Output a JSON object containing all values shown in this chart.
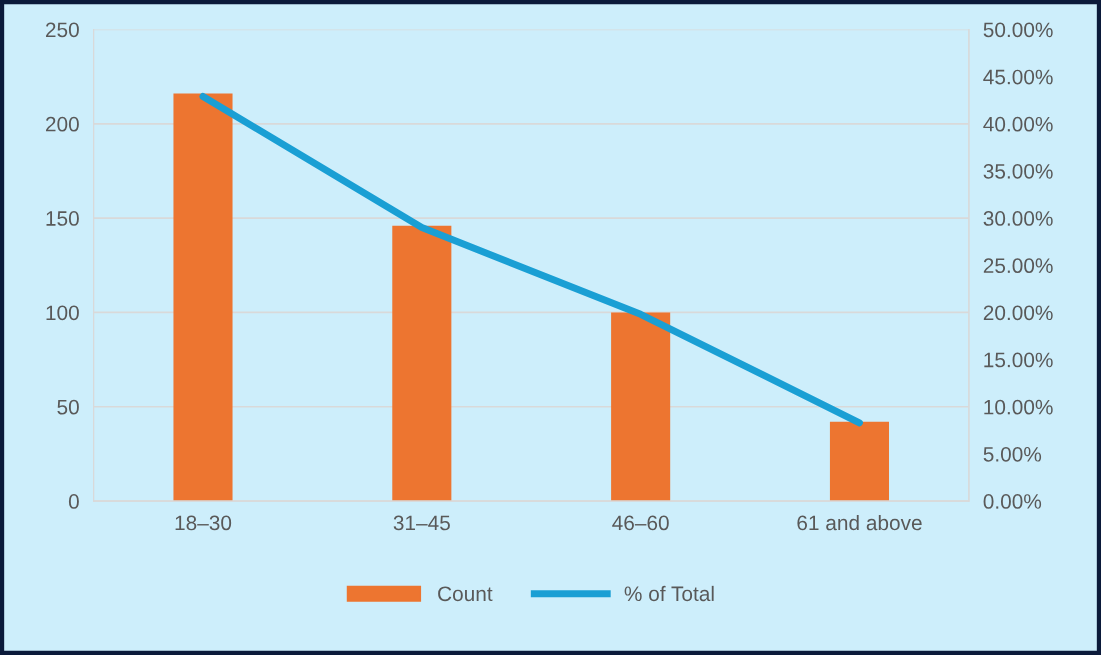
{
  "chart_data": {
    "type": "bar",
    "categories": [
      "18–30",
      "31–45",
      "46–60",
      "61 and above"
    ],
    "series": [
      {
        "name": "Count",
        "color": "#ed7530",
        "values": [
          216,
          146,
          100,
          42
        ]
      },
      {
        "name": "% of Total",
        "type": "line",
        "axis": "y2",
        "color": "#1a9fd4",
        "values": [
          42.9,
          29.0,
          19.8,
          8.3
        ]
      }
    ],
    "ylim": [
      0,
      250
    ],
    "yticks": [
      0,
      50,
      100,
      150,
      200,
      250
    ],
    "y2lim": [
      0,
      50
    ],
    "y2ticks": [
      {
        "value": 0,
        "label": "0.00%"
      },
      {
        "value": 5,
        "label": "5.00%"
      },
      {
        "value": 10,
        "label": "10.00%"
      },
      {
        "value": 15,
        "label": "15.00%"
      },
      {
        "value": 20,
        "label": "20.00%"
      },
      {
        "value": 25,
        "label": "25.00%"
      },
      {
        "value": 30,
        "label": "30.00%"
      },
      {
        "value": 35,
        "label": "35.00%"
      },
      {
        "value": 40,
        "label": "40.00%"
      },
      {
        "value": 45,
        "label": "45.00%"
      },
      {
        "value": 50,
        "label": "50.00%"
      }
    ],
    "grid": "y",
    "legend": "bottom",
    "marker": "none",
    "line_style": "solid"
  }
}
